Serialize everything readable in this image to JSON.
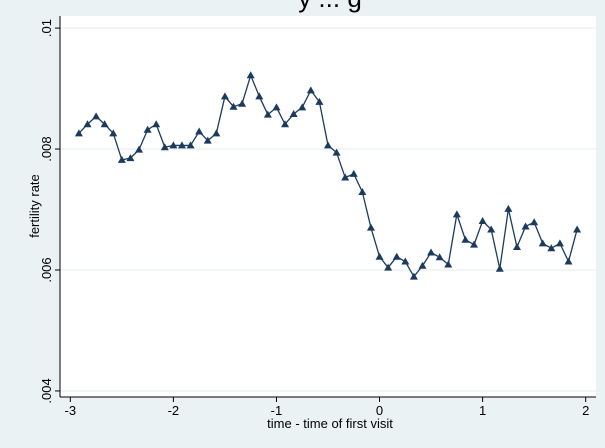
{
  "chart_data": {
    "type": "line",
    "title": "",
    "title_fragment": "y ... g",
    "xlabel": "time - time of first visit",
    "ylabel": "fertility rate",
    "xlim": [
      -3.1,
      2.1
    ],
    "ylim": [
      0.0039,
      0.0102
    ],
    "xticks": [
      {
        "value": -3,
        "label": "-3"
      },
      {
        "value": -2,
        "label": "-2"
      },
      {
        "value": -1,
        "label": "-1"
      },
      {
        "value": 0,
        "label": "0"
      },
      {
        "value": 1,
        "label": "1"
      },
      {
        "value": 2,
        "label": "2"
      }
    ],
    "yticks": [
      {
        "value": 0.004,
        "label": ".004"
      },
      {
        "value": 0.006,
        "label": ".006"
      },
      {
        "value": 0.008,
        "label": ".008"
      },
      {
        "value": 0.01,
        "label": ".01"
      }
    ],
    "grid": "horizontal",
    "legend": "none",
    "colors": {
      "background": "#eaf2f3",
      "plot_area": "#ffffff",
      "grid": "#e6eeee",
      "series": "#1b3b5e"
    },
    "marker": "triangle",
    "series": [
      {
        "x": [
          -2.9167,
          -2.8333,
          -2.75,
          -2.6667,
          -2.5833,
          -2.5,
          -2.4167,
          -2.3333,
          -2.25,
          -2.1667,
          -2.0833,
          -2.0,
          -1.9167,
          -1.8333,
          -1.75,
          -1.6667,
          -1.5833,
          -1.5,
          -1.4167,
          -1.3333,
          -1.25,
          -1.1667,
          -1.0833,
          -1.0,
          -0.9167,
          -0.8333,
          -0.75,
          -0.6667,
          -0.5833,
          -0.5,
          -0.4167,
          -0.3333,
          -0.25,
          -0.1667,
          -0.0833,
          0.0,
          0.0833,
          0.1667,
          0.25,
          0.3333,
          0.4167,
          0.5,
          0.5833,
          0.6667,
          0.75,
          0.8333,
          0.9167,
          1.0,
          1.0833,
          1.1667,
          1.25,
          1.3333,
          1.4167,
          1.5,
          1.5833,
          1.6667,
          1.75,
          1.8333,
          1.9167
        ],
        "values": [
          0.00826,
          0.00841,
          0.00854,
          0.00841,
          0.00826,
          0.00782,
          0.00785,
          0.00799,
          0.00832,
          0.00841,
          0.00803,
          0.00806,
          0.00806,
          0.00806,
          0.00829,
          0.00814,
          0.00826,
          0.00887,
          0.0087,
          0.00875,
          0.00922,
          0.00887,
          0.00857,
          0.00869,
          0.00841,
          0.00858,
          0.00869,
          0.00897,
          0.00878,
          0.00806,
          0.00794,
          0.00753,
          0.00759,
          0.00729,
          0.0067,
          0.00622,
          0.00604,
          0.00622,
          0.00614,
          0.00589,
          0.00607,
          0.00629,
          0.00621,
          0.00609,
          0.00692,
          0.0065,
          0.00642,
          0.00681,
          0.00667,
          0.00602,
          0.00701,
          0.00638,
          0.00672,
          0.00679,
          0.00644,
          0.00636,
          0.00644,
          0.00614,
          0.00667
        ]
      }
    ]
  }
}
